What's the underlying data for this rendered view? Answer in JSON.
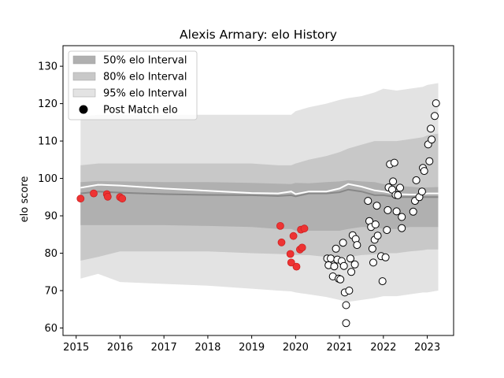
{
  "chart_data": {
    "type": "scatter",
    "title": "Alexis Armary: elo History",
    "xlabel": "",
    "ylabel": "elo score",
    "xlim": [
      2014.7,
      2023.6
    ],
    "ylim": [
      58,
      135.5
    ],
    "xticks": [
      2015,
      2016,
      2017,
      2018,
      2019,
      2020,
      2021,
      2022,
      2023
    ],
    "yticks": [
      60,
      70,
      80,
      90,
      100,
      110,
      120,
      130
    ],
    "grid": false,
    "legend_placement": "top-left",
    "legend": [
      {
        "label": "50% elo Interval",
        "kind": "band50"
      },
      {
        "label": "80% elo Interval",
        "kind": "band80"
      },
      {
        "label": "95% elo Interval",
        "kind": "band95"
      },
      {
        "label": "Post Match elo",
        "kind": "marker"
      }
    ],
    "colors": {
      "band50": "#b0b0b0",
      "band80": "#c8c8c8",
      "band95": "#e3e3e3",
      "mean_line": "#ffffff",
      "median_line": "#888888",
      "red_marker": "#ee3333",
      "white_marker": "#ffffff",
      "marker_edge": "#000000"
    },
    "bands": {
      "x": [
        2015.1,
        2015.5,
        2016,
        2017,
        2018,
        2019,
        2019.6,
        2019.9,
        2020.0,
        2020.3,
        2020.7,
        2021.0,
        2021.2,
        2021.5,
        2021.8,
        2022.0,
        2022.3,
        2022.6,
        2022.9,
        2023.0,
        2023.25
      ],
      "p95_hi": [
        116.5,
        117,
        117,
        117,
        117,
        117,
        117,
        117,
        118,
        119,
        120,
        121,
        121.5,
        122,
        123,
        124,
        123.5,
        124,
        124.5,
        125,
        125.5
      ],
      "p80_hi": [
        103.5,
        104,
        104,
        104,
        104,
        104,
        103.5,
        103.5,
        104,
        105,
        106,
        107,
        108,
        109,
        110,
        110,
        110,
        110.5,
        111,
        111.5,
        112
      ],
      "p50_hi": [
        99,
        99.3,
        99.2,
        99,
        99,
        98.8,
        98.6,
        98.5,
        98.8,
        98.7,
        99,
        99.2,
        99.5,
        99.2,
        99,
        98.5,
        98,
        97.8,
        97.5,
        97.6,
        97.7
      ],
      "p50_lo": [
        87.5,
        87.5,
        87.5,
        87.5,
        87.3,
        87,
        86.5,
        86.5,
        86,
        86,
        86,
        86,
        86.5,
        87,
        87,
        86.5,
        86.5,
        87,
        87,
        87,
        87
      ],
      "p80_lo": [
        78,
        79,
        80.5,
        80.5,
        80.5,
        80,
        79.8,
        79.7,
        79.5,
        79.5,
        79,
        79,
        79,
        79.5,
        79.7,
        80,
        80,
        80.5,
        80.8,
        81,
        81
      ],
      "p95_lo": [
        73.2,
        74.5,
        72.3,
        71.8,
        71.3,
        70.5,
        70,
        69.8,
        69.5,
        69,
        68.3,
        67.5,
        67,
        67.5,
        68,
        68.5,
        68.5,
        69,
        69.5,
        69.5,
        70
      ],
      "mean": [
        97.5,
        98.3,
        98.1,
        97.3,
        96.7,
        96.1,
        96,
        96.5,
        95.8,
        96.5,
        96.5,
        97.3,
        98.5,
        97.8,
        96.8,
        96.5,
        95.8,
        95.7,
        95.7,
        96,
        96
      ],
      "median": [
        96,
        96.5,
        96.2,
        95.8,
        95.6,
        95.5,
        95.3,
        95.5,
        95.2,
        96,
        96,
        96.3,
        97,
        96.5,
        95.5,
        95.5,
        95,
        95,
        95,
        95,
        95
      ]
    },
    "red_points": [
      {
        "x": 2015.1,
        "y": 94.6
      },
      {
        "x": 2015.4,
        "y": 96
      },
      {
        "x": 2015.7,
        "y": 95.8
      },
      {
        "x": 2015.72,
        "y": 95.1
      },
      {
        "x": 2016.0,
        "y": 95
      },
      {
        "x": 2016.05,
        "y": 94.6
      },
      {
        "x": 2019.65,
        "y": 87.3
      },
      {
        "x": 2019.68,
        "y": 82.9
      },
      {
        "x": 2019.88,
        "y": 79.8
      },
      {
        "x": 2019.9,
        "y": 77.5
      },
      {
        "x": 2019.95,
        "y": 84.6
      },
      {
        "x": 2020.02,
        "y": 76.4
      },
      {
        "x": 2020.1,
        "y": 81
      },
      {
        "x": 2020.15,
        "y": 81.5
      },
      {
        "x": 2020.12,
        "y": 86.3
      },
      {
        "x": 2020.2,
        "y": 86.6
      }
    ],
    "white_points": [
      {
        "x": 2020.72,
        "y": 78.6
      },
      {
        "x": 2020.75,
        "y": 76.8
      },
      {
        "x": 2020.8,
        "y": 78.6
      },
      {
        "x": 2020.85,
        "y": 73.8
      },
      {
        "x": 2020.88,
        "y": 76.5
      },
      {
        "x": 2020.92,
        "y": 81.2
      },
      {
        "x": 2020.95,
        "y": 78.3
      },
      {
        "x": 2020.98,
        "y": 73.2
      },
      {
        "x": 2021.02,
        "y": 73
      },
      {
        "x": 2021.05,
        "y": 77.9
      },
      {
        "x": 2021.08,
        "y": 82.8
      },
      {
        "x": 2021.1,
        "y": 76.6
      },
      {
        "x": 2021.12,
        "y": 69.5
      },
      {
        "x": 2021.15,
        "y": 66.1
      },
      {
        "x": 2021.15,
        "y": 61.3
      },
      {
        "x": 2021.22,
        "y": 70
      },
      {
        "x": 2021.25,
        "y": 78.6
      },
      {
        "x": 2021.27,
        "y": 75
      },
      {
        "x": 2021.3,
        "y": 84.8
      },
      {
        "x": 2021.35,
        "y": 77
      },
      {
        "x": 2021.37,
        "y": 83.8
      },
      {
        "x": 2021.4,
        "y": 82.2
      },
      {
        "x": 2021.65,
        "y": 94
      },
      {
        "x": 2021.68,
        "y": 88.6
      },
      {
        "x": 2021.72,
        "y": 87
      },
      {
        "x": 2021.75,
        "y": 81.2
      },
      {
        "x": 2021.77,
        "y": 77.5
      },
      {
        "x": 2021.8,
        "y": 83.6
      },
      {
        "x": 2021.82,
        "y": 87.7
      },
      {
        "x": 2021.85,
        "y": 92.7
      },
      {
        "x": 2021.87,
        "y": 84.7
      },
      {
        "x": 2021.95,
        "y": 79.2
      },
      {
        "x": 2021.98,
        "y": 72.5
      },
      {
        "x": 2022.05,
        "y": 78.9
      },
      {
        "x": 2022.08,
        "y": 86.2
      },
      {
        "x": 2022.1,
        "y": 91.5
      },
      {
        "x": 2022.12,
        "y": 97.6
      },
      {
        "x": 2022.15,
        "y": 103.8
      },
      {
        "x": 2022.2,
        "y": 97
      },
      {
        "x": 2022.22,
        "y": 99.2
      },
      {
        "x": 2022.25,
        "y": 104.2
      },
      {
        "x": 2022.28,
        "y": 95.6
      },
      {
        "x": 2022.3,
        "y": 91.2
      },
      {
        "x": 2022.33,
        "y": 95.5
      },
      {
        "x": 2022.38,
        "y": 97.5
      },
      {
        "x": 2022.42,
        "y": 89.7
      },
      {
        "x": 2022.42,
        "y": 86.7
      },
      {
        "x": 2022.68,
        "y": 91.1
      },
      {
        "x": 2022.72,
        "y": 94
      },
      {
        "x": 2022.75,
        "y": 99.5
      },
      {
        "x": 2022.82,
        "y": 95
      },
      {
        "x": 2022.88,
        "y": 96.5
      },
      {
        "x": 2022.9,
        "y": 102.8
      },
      {
        "x": 2022.93,
        "y": 102
      },
      {
        "x": 2023.02,
        "y": 109.1
      },
      {
        "x": 2023.05,
        "y": 104.6
      },
      {
        "x": 2023.08,
        "y": 113.3
      },
      {
        "x": 2023.1,
        "y": 110.4
      },
      {
        "x": 2023.17,
        "y": 116.7
      },
      {
        "x": 2023.2,
        "y": 120.1
      }
    ]
  }
}
